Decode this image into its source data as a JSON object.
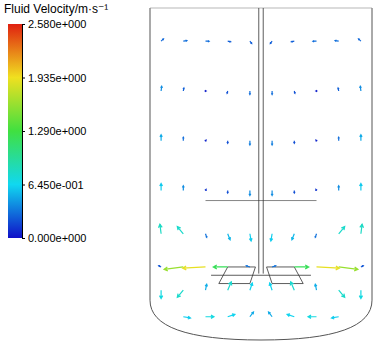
{
  "chart_data": {
    "type": "vector_field",
    "title": "Fluid Velocity/m·s⁻¹",
    "colorbar_range": [
      0,
      2.58
    ],
    "colorbar_ticks": [
      {
        "value": 2.58,
        "label": "2.580e+000"
      },
      {
        "value": 1.935,
        "label": "1.935e+000"
      },
      {
        "value": 1.29,
        "label": "1.290e+000"
      },
      {
        "value": 0.645,
        "label": "6.450e-001"
      },
      {
        "value": 0,
        "label": "0.000e+000"
      }
    ],
    "xlim": [
      -1,
      1
    ],
    "ylim": [
      0,
      1
    ],
    "tick_labels": false,
    "vectors": [
      [
        -0.7,
        0.07,
        0.6,
        -0.1
      ],
      [
        -0.5,
        0.07,
        0.7,
        0.0
      ],
      [
        -0.3,
        0.07,
        0.6,
        0.2
      ],
      [
        -0.1,
        0.07,
        0.3,
        0.4
      ],
      [
        -0.9,
        0.15,
        0.0,
        -0.7
      ],
      [
        -0.7,
        0.15,
        -0.5,
        -0.6
      ],
      [
        -0.5,
        0.15,
        0.1,
        0.5
      ],
      [
        -0.3,
        0.15,
        0.3,
        0.7
      ],
      [
        -0.1,
        0.15,
        0.2,
        0.6
      ],
      [
        -0.9,
        0.22,
        -0.2,
        0.1
      ],
      [
        -0.7,
        0.22,
        -1.6,
        -0.2
      ],
      [
        -0.5,
        0.22,
        -1.9,
        -0.1
      ],
      [
        -0.3,
        0.22,
        -1.2,
        0.0
      ],
      [
        -0.1,
        0.22,
        -0.3,
        0.1
      ],
      [
        -0.9,
        0.32,
        -0.1,
        0.8
      ],
      [
        -0.7,
        0.32,
        -0.5,
        0.6
      ],
      [
        -0.5,
        0.32,
        0.1,
        -0.3
      ],
      [
        -0.3,
        0.32,
        0.2,
        -0.5
      ],
      [
        -0.1,
        0.32,
        0.1,
        -0.6
      ],
      [
        -0.9,
        0.45,
        0.0,
        0.6
      ],
      [
        -0.7,
        0.45,
        0.0,
        0.4
      ],
      [
        -0.5,
        0.45,
        0.05,
        0.1
      ],
      [
        -0.3,
        0.45,
        0.0,
        -0.2
      ],
      [
        -0.1,
        0.45,
        0.0,
        -0.4
      ],
      [
        -0.9,
        0.6,
        0.0,
        0.5
      ],
      [
        -0.7,
        0.6,
        0.0,
        0.3
      ],
      [
        -0.5,
        0.6,
        0.05,
        0.05
      ],
      [
        -0.3,
        0.6,
        0.0,
        -0.2
      ],
      [
        -0.1,
        0.6,
        0.0,
        -0.35
      ],
      [
        -0.9,
        0.75,
        0.05,
        0.4
      ],
      [
        -0.7,
        0.75,
        0.05,
        0.25
      ],
      [
        -0.5,
        0.75,
        0.05,
        0.0
      ],
      [
        -0.3,
        0.75,
        -0.05,
        -0.2
      ],
      [
        -0.1,
        0.75,
        0.0,
        -0.3
      ],
      [
        -0.9,
        0.9,
        0.2,
        0.2
      ],
      [
        -0.7,
        0.9,
        0.3,
        0.05
      ],
      [
        -0.5,
        0.9,
        0.3,
        0.0
      ],
      [
        -0.3,
        0.9,
        0.25,
        -0.05
      ],
      [
        -0.1,
        0.9,
        0.15,
        -0.2
      ],
      [
        0.7,
        0.07,
        -0.6,
        -0.1
      ],
      [
        0.5,
        0.07,
        -0.7,
        0.0
      ],
      [
        0.3,
        0.07,
        -0.6,
        0.2
      ],
      [
        0.1,
        0.07,
        -0.3,
        0.4
      ],
      [
        0.9,
        0.15,
        0.0,
        -0.7
      ],
      [
        0.7,
        0.15,
        0.5,
        -0.6
      ],
      [
        0.5,
        0.15,
        -0.1,
        0.5
      ],
      [
        0.3,
        0.15,
        -0.3,
        0.7
      ],
      [
        0.1,
        0.15,
        -0.2,
        0.6
      ],
      [
        0.9,
        0.22,
        0.2,
        0.1
      ],
      [
        0.7,
        0.22,
        1.6,
        -0.2
      ],
      [
        0.5,
        0.22,
        1.9,
        -0.1
      ],
      [
        0.3,
        0.22,
        1.2,
        0.0
      ],
      [
        0.1,
        0.22,
        0.3,
        0.1
      ],
      [
        0.9,
        0.32,
        0.1,
        0.8
      ],
      [
        0.7,
        0.32,
        0.5,
        0.6
      ],
      [
        0.5,
        0.32,
        -0.1,
        -0.3
      ],
      [
        0.3,
        0.32,
        -0.2,
        -0.5
      ],
      [
        0.1,
        0.32,
        -0.1,
        -0.6
      ],
      [
        0.9,
        0.45,
        0.0,
        0.6
      ],
      [
        0.7,
        0.45,
        0.0,
        0.4
      ],
      [
        0.5,
        0.45,
        -0.05,
        0.1
      ],
      [
        0.3,
        0.45,
        0.0,
        -0.2
      ],
      [
        0.1,
        0.45,
        0.0,
        -0.4
      ],
      [
        0.9,
        0.6,
        0.0,
        0.5
      ],
      [
        0.7,
        0.6,
        0.0,
        0.3
      ],
      [
        0.5,
        0.6,
        -0.05,
        0.05
      ],
      [
        0.3,
        0.6,
        0.0,
        -0.2
      ],
      [
        0.1,
        0.6,
        0.0,
        -0.35
      ],
      [
        0.9,
        0.75,
        -0.05,
        0.4
      ],
      [
        0.7,
        0.75,
        -0.05,
        0.25
      ],
      [
        0.5,
        0.75,
        -0.05,
        0.0
      ],
      [
        0.3,
        0.75,
        0.05,
        -0.2
      ],
      [
        0.1,
        0.75,
        0.0,
        -0.3
      ],
      [
        0.9,
        0.9,
        -0.2,
        0.2
      ],
      [
        0.7,
        0.9,
        -0.3,
        0.05
      ],
      [
        0.5,
        0.9,
        -0.3,
        0.0
      ],
      [
        0.3,
        0.9,
        -0.25,
        -0.05
      ],
      [
        0.1,
        0.9,
        -0.15,
        -0.2
      ]
    ]
  }
}
